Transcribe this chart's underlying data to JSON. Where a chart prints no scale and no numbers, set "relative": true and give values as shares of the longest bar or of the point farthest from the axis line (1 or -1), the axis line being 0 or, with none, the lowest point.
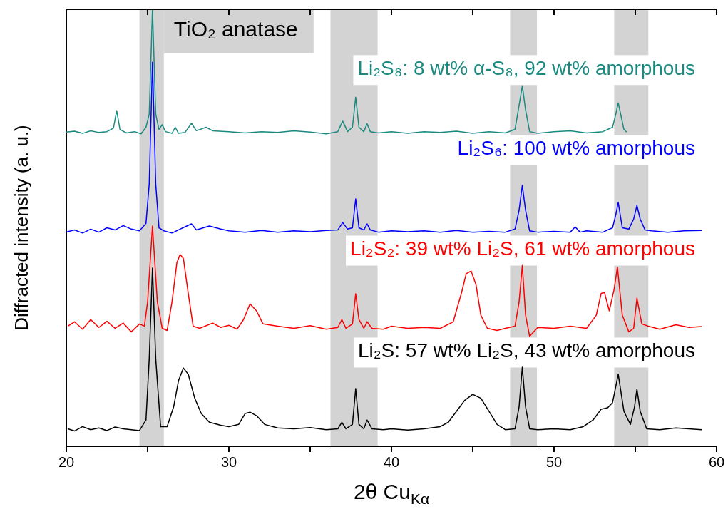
{
  "chart_data": {
    "type": "line",
    "xlabel": "2θ Cu$_{Kα}$",
    "ylabel": "Diffracted intensity (a. u.)",
    "relative": true,
    "marker": "none",
    "xlim": [
      20,
      60
    ],
    "xticks": [
      20,
      {
        "value": 25,
        "label": null
      },
      30,
      {
        "value": 35,
        "label": null
      },
      40,
      {
        "value": 45,
        "label": null
      },
      50,
      {
        "value": 55,
        "label": null
      },
      60
    ],
    "bands": [
      {
        "axis": "x",
        "from": 24.5,
        "to": 26,
        "label": "TiO₂ anatase",
        "color": "#d3d3d3"
      },
      {
        "axis": "x",
        "from": 36.25,
        "to": 39.15,
        "color": "#d3d3d3"
      },
      {
        "axis": "x",
        "from": 47.3,
        "to": 48.95,
        "color": "#d3d3d3"
      },
      {
        "axis": "x",
        "from": 53.7,
        "to": 55.8,
        "color": "#d3d3d3"
      }
    ],
    "series": [
      {
        "name": "Li₂S₈: 8 wt% α-S₈, 92 wt% amorphous",
        "color": "#1a8a80",
        "x": [
          20,
          20.5,
          21,
          21.5,
          22,
          22.5,
          22.9,
          23.1,
          23.3,
          23.7,
          24.2,
          24.6,
          24.9,
          25.1,
          25.3,
          25.5,
          25.7,
          25.9,
          26.1,
          26.5,
          26.7,
          26.9,
          27.3,
          27.7,
          28.0,
          28.6,
          29,
          30,
          31,
          32,
          33,
          34,
          35,
          36,
          36.7,
          37.0,
          37.3,
          37.6,
          37.8,
          38.0,
          38.3,
          38.5,
          38.7,
          39.2,
          40,
          41,
          42,
          43,
          44,
          45,
          46,
          47,
          47.6,
          47.85,
          48.05,
          48.25,
          48.5,
          49,
          50,
          51,
          52,
          53,
          53.6,
          53.8,
          53.95,
          54.1,
          54.3,
          54.47
        ],
        "values": [
          0.719,
          0.721,
          0.716,
          0.722,
          0.718,
          0.72,
          0.728,
          0.768,
          0.725,
          0.717,
          0.72,
          0.715,
          0.73,
          0.76,
          1.0,
          0.76,
          0.725,
          0.736,
          0.72,
          0.716,
          0.73,
          0.716,
          0.718,
          0.739,
          0.722,
          0.73,
          0.722,
          0.72,
          0.717,
          0.72,
          0.718,
          0.722,
          0.719,
          0.715,
          0.72,
          0.744,
          0.72,
          0.73,
          0.799,
          0.73,
          0.72,
          0.738,
          0.72,
          0.717,
          0.72,
          0.716,
          0.72,
          0.718,
          0.721,
          0.716,
          0.72,
          0.717,
          0.725,
          0.78,
          0.825,
          0.77,
          0.72,
          0.716,
          0.72,
          0.722,
          0.717,
          0.72,
          0.73,
          0.76,
          0.786,
          0.76,
          0.725,
          0.719
        ]
      },
      {
        "name": "Li₂S₆: 100 wt% amorphous",
        "color": "#0000ff",
        "x": [
          20,
          20.5,
          21,
          21.5,
          22,
          22.5,
          23,
          23.5,
          24,
          24.5,
          24.9,
          25.1,
          25.3,
          25.5,
          25.7,
          26,
          26.5,
          27,
          27.7,
          28,
          28.8,
          29.5,
          30,
          31,
          32,
          33,
          34,
          35,
          36,
          36.7,
          37.0,
          37.3,
          37.6,
          37.8,
          38.0,
          38.3,
          38.5,
          38.7,
          39.2,
          40,
          41,
          42,
          43,
          44,
          45,
          46,
          47,
          47.6,
          47.85,
          48.05,
          48.25,
          48.5,
          49,
          50,
          51,
          51.3,
          51.6,
          52,
          53,
          53.6,
          53.8,
          53.95,
          54.2,
          54.6,
          54.9,
          55.1,
          55.3,
          55.6,
          56,
          57,
          58,
          59.08
        ],
        "values": [
          0.49,
          0.495,
          0.488,
          0.497,
          0.49,
          0.5,
          0.495,
          0.505,
          0.497,
          0.493,
          0.51,
          0.6,
          0.879,
          0.6,
          0.5,
          0.493,
          0.488,
          0.497,
          0.509,
          0.495,
          0.504,
          0.497,
          0.493,
          0.49,
          0.494,
          0.49,
          0.493,
          0.491,
          0.494,
          0.495,
          0.512,
          0.497,
          0.5,
          0.566,
          0.5,
          0.495,
          0.509,
          0.495,
          0.49,
          0.493,
          0.491,
          0.493,
          0.49,
          0.494,
          0.49,
          0.492,
          0.49,
          0.497,
          0.54,
          0.597,
          0.54,
          0.493,
          0.49,
          0.492,
          0.49,
          0.502,
          0.49,
          0.493,
          0.49,
          0.5,
          0.53,
          0.558,
          0.5,
          0.497,
          0.52,
          0.551,
          0.52,
          0.495,
          0.493,
          0.49,
          0.493,
          0.494
        ]
      },
      {
        "name": "Li₂S₂: 39 wt% Li₂S, 61 wt% amorphous",
        "color": "#ff0000",
        "x": [
          20.1,
          20.5,
          21,
          21.5,
          22,
          22.5,
          23,
          23.5,
          24,
          24.5,
          24.8,
          25.0,
          25.3,
          25.6,
          25.9,
          26.2,
          26.5,
          26.8,
          27.0,
          27.2,
          27.5,
          27.8,
          28.2,
          29,
          29.5,
          30,
          30.5,
          30.9,
          31.3,
          31.7,
          32.1,
          33,
          34,
          35,
          36,
          36.7,
          36.95,
          37.2,
          37.6,
          37.8,
          38.0,
          38.3,
          38.5,
          38.8,
          39.5,
          40,
          41,
          42,
          43,
          43.8,
          44.3,
          44.6,
          44.9,
          45.2,
          45.5,
          45.9,
          46.5,
          47,
          47.6,
          47.85,
          48.05,
          48.25,
          48.5,
          49,
          50,
          51,
          52,
          52.6,
          52.9,
          53.1,
          53.4,
          53.7,
          53.9,
          54.2,
          54.6,
          54.9,
          55.1,
          55.4,
          55.8,
          56.5,
          57.5,
          58.3,
          59.08
        ],
        "values": [
          0.275,
          0.285,
          0.268,
          0.29,
          0.272,
          0.286,
          0.27,
          0.282,
          0.262,
          0.28,
          0.275,
          0.33,
          0.504,
          0.33,
          0.27,
          0.265,
          0.33,
          0.42,
          0.439,
          0.43,
          0.35,
          0.275,
          0.27,
          0.282,
          0.272,
          0.277,
          0.268,
          0.29,
          0.326,
          0.31,
          0.28,
          0.275,
          0.27,
          0.276,
          0.268,
          0.272,
          0.29,
          0.27,
          0.28,
          0.349,
          0.29,
          0.27,
          0.285,
          0.27,
          0.268,
          0.275,
          0.27,
          0.272,
          0.27,
          0.285,
          0.35,
          0.395,
          0.401,
          0.37,
          0.3,
          0.27,
          0.265,
          0.27,
          0.275,
          0.33,
          0.414,
          0.3,
          0.252,
          0.272,
          0.27,
          0.275,
          0.27,
          0.3,
          0.35,
          0.352,
          0.31,
          0.36,
          0.41,
          0.3,
          0.262,
          0.27,
          0.339,
          0.28,
          0.275,
          0.268,
          0.278,
          0.272,
          0.274
        ]
      },
      {
        "name": "Li₂S: 57 wt% Li₂S, 43 wt% amorphous",
        "color": "#000000",
        "x": [
          20.1,
          20.5,
          21,
          21.5,
          22,
          22.5,
          23,
          23.5,
          24,
          24.5,
          24.9,
          25.1,
          25.3,
          25.5,
          25.8,
          26.2,
          26.6,
          26.9,
          27.2,
          27.5,
          27.9,
          28.3,
          28.8,
          29.5,
          30,
          30.6,
          31.0,
          31.3,
          31.7,
          32.2,
          33,
          34,
          35,
          36,
          36.7,
          36.95,
          37.2,
          37.6,
          37.8,
          38.0,
          38.3,
          38.5,
          38.8,
          39.5,
          40,
          41,
          42,
          43,
          43.5,
          44,
          44.5,
          45.0,
          45.5,
          46,
          46.5,
          47,
          47.6,
          47.85,
          48.05,
          48.25,
          48.5,
          49,
          50,
          51,
          51.8,
          52.4,
          52.9,
          53.3,
          53.6,
          53.95,
          54.3,
          54.7,
          54.95,
          55.1,
          55.3,
          55.7,
          56.5,
          57.5,
          58.3,
          59.08
        ],
        "values": [
          0.04,
          0.035,
          0.045,
          0.038,
          0.042,
          0.036,
          0.044,
          0.04,
          0.038,
          0.036,
          0.06,
          0.2,
          0.408,
          0.2,
          0.045,
          0.045,
          0.09,
          0.15,
          0.179,
          0.165,
          0.11,
          0.075,
          0.055,
          0.048,
          0.045,
          0.05,
          0.075,
          0.078,
          0.07,
          0.05,
          0.042,
          0.04,
          0.043,
          0.038,
          0.04,
          0.055,
          0.04,
          0.05,
          0.132,
          0.05,
          0.04,
          0.06,
          0.04,
          0.038,
          0.04,
          0.037,
          0.04,
          0.045,
          0.055,
          0.08,
          0.105,
          0.119,
          0.11,
          0.08,
          0.05,
          0.038,
          0.04,
          0.09,
          0.181,
          0.09,
          0.04,
          0.038,
          0.04,
          0.038,
          0.045,
          0.06,
          0.085,
          0.088,
          0.1,
          0.165,
          0.08,
          0.05,
          0.09,
          0.131,
          0.08,
          0.04,
          0.038,
          0.042,
          0.04,
          0.038
        ]
      }
    ]
  }
}
